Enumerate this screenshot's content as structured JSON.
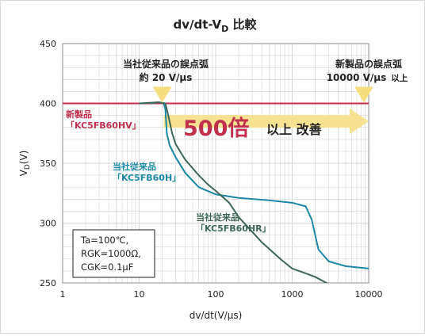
{
  "colors": {
    "current_product": "#1b88a6",
    "current_product_hr": "#3e6655",
    "new_product": "#c0304d",
    "arrow": "#f6e08a",
    "arrow_dark": "#e6c55f",
    "grid": "#d4d4d4",
    "text": "#222222"
  },
  "chart_data": {
    "type": "line",
    "title": {
      "main": "dv/dt-V",
      "subscript": "D",
      "suffix": " 比較"
    },
    "xlabel": "dv/dt(V/μs)",
    "ylabel": {
      "main": "V",
      "subscript": "D",
      "suffix": "(V)"
    },
    "xscale": "log",
    "xlim": [
      1,
      10000
    ],
    "ylim": [
      250,
      450
    ],
    "x_ticks": [
      1,
      10,
      100,
      1000,
      10000
    ],
    "x_tick_labels": [
      "1",
      "10",
      "100",
      "1000",
      "10000"
    ],
    "y_ticks": [
      250,
      300,
      350,
      400,
      450
    ],
    "y_tick_labels": [
      "250",
      "300",
      "350",
      "400",
      "450"
    ],
    "grid": true,
    "series": [
      {
        "key": "kc5fb60hv",
        "label_line1": "新製品",
        "label_line2": "「KC5FB60HV」",
        "color_key": "new_product",
        "x": [
          1,
          10000
        ],
        "y": [
          400,
          400
        ]
      },
      {
        "key": "kc5fb60h",
        "label_line1": "当社従来品",
        "label_line2": "「KC5FB60H」",
        "color_key": "current_product",
        "x": [
          14,
          18,
          21,
          22,
          23,
          25,
          30,
          40,
          60,
          100,
          200,
          500,
          1000,
          1500,
          1800,
          2200,
          3000,
          5000,
          10000
        ],
        "y": [
          400,
          401,
          400,
          395,
          375,
          365,
          355,
          342,
          330,
          324,
          321,
          319,
          317,
          314,
          303,
          278,
          268,
          264,
          262
        ]
      },
      {
        "key": "kc5fb60hr",
        "label_line1": "当社従来品",
        "label_line2": "「KC5FB60HR」",
        "color_key": "current_product_hr",
        "x": [
          10,
          18,
          22,
          24,
          27,
          30,
          40,
          60,
          80,
          100,
          150,
          200,
          400,
          700,
          1000,
          1500,
          2000,
          3000
        ],
        "y": [
          400,
          401,
          400,
          390,
          375,
          366,
          353,
          340,
          332,
          327,
          317,
          305,
          284,
          270,
          262,
          258,
          255,
          249
        ]
      }
    ],
    "annotations": {
      "current_line1": "当社従来品の誤点弧",
      "current_line2": "約 20 V/μs",
      "current_marker_x": 20,
      "new_line1": "新製品の誤点弧",
      "new_line2": "10000 V/μs",
      "new_line2_suffix": "以上",
      "new_marker_x": 10000,
      "improvement_value": "500倍",
      "improvement_text": "以上 改善",
      "arrow_from_x": 20,
      "arrow_to_x": 10000,
      "arrow_level_y": 385,
      "conditions": [
        "Ta=100℃,",
        "RGK=1000Ω,",
        "CGK=0.1μF"
      ]
    }
  }
}
